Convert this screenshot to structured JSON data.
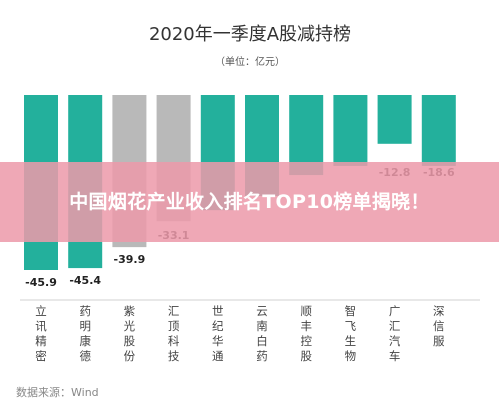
{
  "headline": "中国烟花产业收入排名TOP10榜单揭晓！",
  "chart_data": {
    "type": "bar",
    "title": "2020年一季度A股减持榜",
    "subtitle": "（单位：亿元）",
    "categories": [
      "立讯精密",
      "药明康德",
      "紫光股份",
      "汇顶科技",
      "世纪华通",
      "云南白药",
      "顺丰控股",
      "智飞生物",
      "广汇汽车",
      "深信服"
    ],
    "values": [
      -45.9,
      -45.4,
      -39.9,
      -33.1,
      -30.2,
      -26.5,
      -21.0,
      -18.6,
      -12.8,
      -18.6
    ],
    "value_labels": [
      "-45.9",
      "-45.4",
      "-39.9",
      "-33.1",
      "",
      "",
      "",
      "",
      "-12.8",
      "-18.6"
    ],
    "ylim": [
      -50,
      0
    ],
    "source": "数据来源：Wind",
    "grid": false,
    "legend": "none",
    "colors": {
      "bar": "#23B09C",
      "bar_muted": "#B9B9B9",
      "bar_under_overlay": "#D29B9B"
    }
  }
}
